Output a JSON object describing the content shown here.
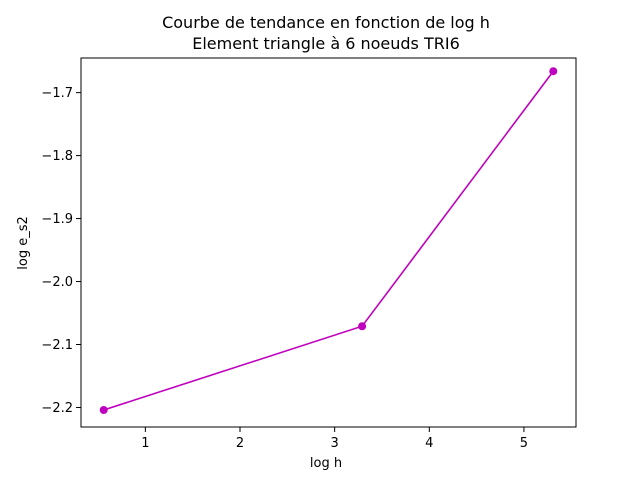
{
  "chart_data": {
    "type": "line",
    "title": "Courbe de tendance en fonction de log h",
    "subtitle": "Element triangle à 6 noeuds TRI6",
    "xlabel": "log h",
    "ylabel": "log e_s2",
    "xlim": [
      0.32,
      5.55
    ],
    "ylim": [
      -2.231,
      -1.645
    ],
    "xticks": [
      1,
      2,
      3,
      4,
      5
    ],
    "xtick_labels": [
      "1",
      "2",
      "3",
      "4",
      "5"
    ],
    "yticks": [
      -2.2,
      -2.1,
      -2.0,
      -1.9,
      -1.8,
      -1.7
    ],
    "ytick_labels": [
      "−2.2",
      "−2.1",
      "−2.0",
      "−1.9",
      "−1.8",
      "−1.7"
    ],
    "grid": false,
    "series": [
      {
        "color": "#bf00bf",
        "marker": "circle",
        "x": [
          0.56,
          3.29,
          5.31
        ],
        "y": [
          -2.204,
          -2.071,
          -1.666
        ]
      }
    ]
  }
}
